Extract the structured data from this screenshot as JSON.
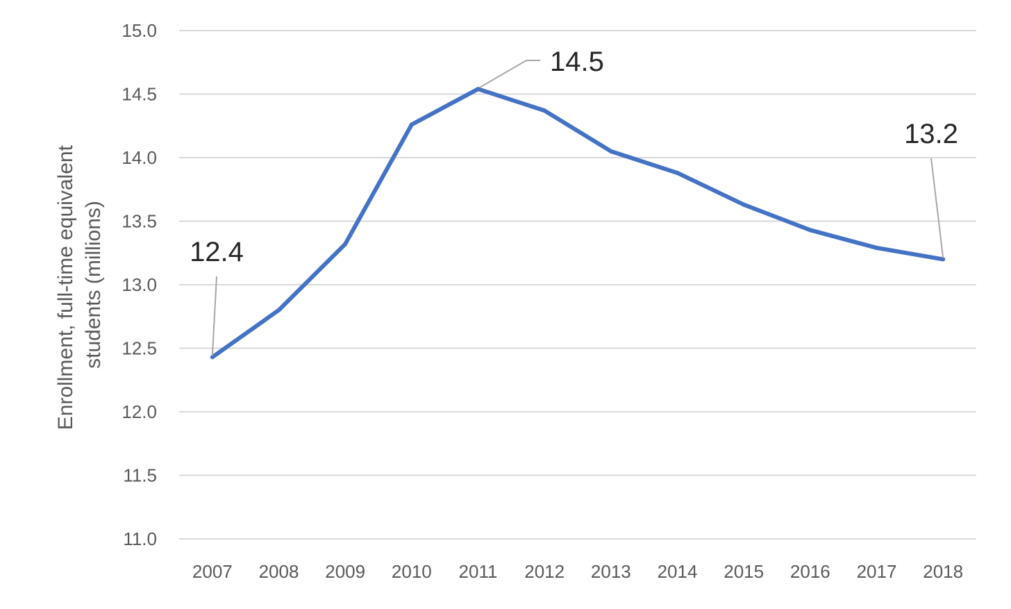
{
  "chart_data": {
    "type": "line",
    "title": "",
    "xlabel": "",
    "ylabel_lines": [
      "Enrollment, full-time equivalent",
      "students (millions)"
    ],
    "x": [
      "2007",
      "2008",
      "2009",
      "2010",
      "2011",
      "2012",
      "2013",
      "2014",
      "2015",
      "2016",
      "2017",
      "2018"
    ],
    "series": [
      {
        "values": [
          12.43,
          12.8,
          13.32,
          14.26,
          14.54,
          14.37,
          14.05,
          13.88,
          13.63,
          13.43,
          13.29,
          13.2
        ]
      }
    ],
    "yticks": [
      "11.0",
      "11.5",
      "12.0",
      "12.5",
      "13.0",
      "13.5",
      "14.0",
      "14.5",
      "15.0"
    ],
    "ylim": [
      11.0,
      15.0
    ],
    "grid": "horizontal",
    "legend": "none",
    "line_color": "#4472c4",
    "data_labels": [
      {
        "index": 0,
        "text": "12.4"
      },
      {
        "index": 4,
        "text": "14.5"
      },
      {
        "index": 11,
        "text": "13.2"
      }
    ]
  }
}
